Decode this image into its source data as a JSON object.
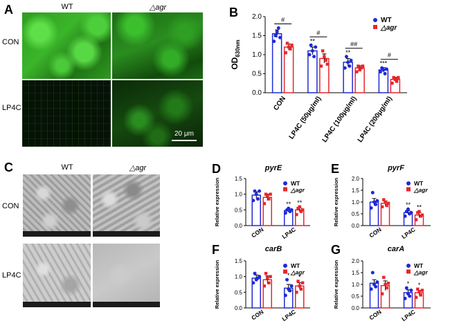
{
  "panels": {
    "A": {
      "letter": "A",
      "col_labels": [
        "WT",
        "△agr"
      ],
      "row_labels": [
        "CON",
        "LP4C"
      ],
      "scale_bar": "20 μm"
    },
    "C": {
      "letter": "C",
      "col_labels": [
        "WT",
        "△agr"
      ],
      "row_labels": [
        "CON",
        "LP4C"
      ]
    }
  },
  "colors": {
    "wt": "#1f2ad6",
    "agr": "#e8262a",
    "fluor": "#3fbf2a",
    "sem": "#b5b5b5"
  },
  "chart_data": [
    {
      "panel": "B",
      "type": "bar",
      "ylabel": "OD630nm",
      "ylim": [
        0,
        2.0
      ],
      "yticks": [
        "0.0",
        "0.5",
        "1.0",
        "1.5",
        "2.0"
      ],
      "categories": [
        "CON",
        "LP4C (50μg/ml)",
        "LP4C (100μg/ml)",
        "LP4C (200μg/ml)"
      ],
      "series": [
        {
          "name": "WT",
          "values": [
            1.55,
            1.1,
            0.8,
            0.6
          ],
          "errors": [
            0.1,
            0.1,
            0.1,
            0.06
          ],
          "points": [
            [
              1.35,
              1.5,
              1.6,
              1.7,
              1.45
            ],
            [
              1.0,
              1.25,
              1.1,
              0.95,
              1.2
            ],
            [
              0.65,
              0.95,
              0.8,
              0.7,
              0.85
            ],
            [
              0.55,
              0.65,
              0.6,
              0.5,
              0.62
            ]
          ]
        },
        {
          "name": "△agr",
          "values": [
            1.2,
            0.9,
            0.65,
            0.35
          ],
          "errors": [
            0.08,
            0.12,
            0.06,
            0.05
          ],
          "points": [
            [
              1.05,
              1.3,
              1.2,
              1.15,
              1.25
            ],
            [
              0.7,
              1.1,
              0.95,
              0.85,
              0.75
            ],
            [
              0.55,
              0.7,
              0.6,
              0.65,
              0.7
            ],
            [
              0.25,
              0.4,
              0.35,
              0.3,
              0.4
            ]
          ]
        }
      ],
      "sig_markers": [
        {
          "index": 0,
          "between": "#",
          "wt": "",
          "agr": ""
        },
        {
          "index": 1,
          "between": "#",
          "wt": "**",
          "agr": ""
        },
        {
          "index": 2,
          "between": "##",
          "wt": "**",
          "agr": ""
        },
        {
          "index": 3,
          "between": "#",
          "wt": "***",
          "agr": ""
        }
      ],
      "legend": "top-right"
    },
    {
      "panel": "D",
      "title": "pyrE",
      "type": "bar",
      "ylabel": "Relative expression",
      "ylim": [
        0,
        1.5
      ],
      "yticks": [
        "0.0",
        "0.5",
        "1.0",
        "1.5"
      ],
      "categories": [
        "CON",
        "LP4C"
      ],
      "series": [
        {
          "name": "WT",
          "values": [
            0.97,
            0.48
          ],
          "errors": [
            0.1,
            0.05
          ],
          "points": [
            [
              0.8,
              1.1,
              1.0,
              0.85,
              1.1
            ],
            [
              0.4,
              0.5,
              0.55,
              0.45,
              0.5
            ]
          ]
        },
        {
          "name": "△agr",
          "values": [
            0.9,
            0.5
          ],
          "errors": [
            0.1,
            0.06
          ],
          "points": [
            [
              0.7,
              1.0,
              0.95,
              0.85,
              1.0
            ],
            [
              0.35,
              0.55,
              0.6,
              0.45,
              0.5
            ]
          ]
        }
      ],
      "sig_markers": [
        {
          "index": 1,
          "wt": "**",
          "agr": "**"
        }
      ],
      "legend": "top-right"
    },
    {
      "panel": "E",
      "title": "pyrF",
      "type": "bar",
      "ylabel": "Relative expression",
      "ylim": [
        0,
        2.0
      ],
      "yticks": [
        "0.0",
        "0.5",
        "1.0",
        "1.5",
        "2.0"
      ],
      "categories": [
        "CON",
        "LP4C"
      ],
      "series": [
        {
          "name": "WT",
          "values": [
            1.0,
            0.55
          ],
          "errors": [
            0.15,
            0.08
          ],
          "points": [
            [
              0.75,
              1.4,
              1.0,
              0.9,
              1.05
            ],
            [
              0.4,
              0.6,
              0.7,
              0.5,
              0.55
            ]
          ]
        },
        {
          "name": "△agr",
          "values": [
            0.95,
            0.45
          ],
          "errors": [
            0.1,
            0.1
          ],
          "points": [
            [
              0.8,
              1.1,
              1.0,
              0.85,
              0.95
            ],
            [
              0.25,
              0.55,
              0.6,
              0.4,
              0.45
            ]
          ]
        }
      ],
      "sig_markers": [
        {
          "index": 1,
          "wt": "**",
          "agr": "**"
        }
      ],
      "legend": "top-right"
    },
    {
      "panel": "F",
      "title": "carB",
      "type": "bar",
      "ylabel": "Relative expression",
      "ylim": [
        0,
        1.5
      ],
      "yticks": [
        "0.0",
        "0.5",
        "1.0",
        "1.5"
      ],
      "categories": [
        "CON",
        "LP4C"
      ],
      "series": [
        {
          "name": "WT",
          "values": [
            0.95,
            0.63
          ],
          "errors": [
            0.1,
            0.12
          ],
          "points": [
            [
              0.8,
              1.1,
              0.9,
              0.95,
              1.0
            ],
            [
              0.4,
              0.9,
              0.6,
              0.55,
              0.7
            ]
          ]
        },
        {
          "name": "△agr",
          "values": [
            0.9,
            0.7
          ],
          "errors": [
            0.12,
            0.1
          ],
          "points": [
            [
              0.7,
              1.1,
              0.95,
              0.8,
              1.0
            ],
            [
              0.5,
              0.85,
              0.7,
              0.6,
              0.8
            ]
          ]
        }
      ],
      "sig_markers": [
        {
          "index": 1,
          "wt": "*",
          "agr": "*"
        }
      ],
      "legend": "top-right"
    },
    {
      "panel": "G",
      "title": "carA",
      "type": "bar",
      "ylabel": "Relative expression",
      "ylim": [
        0,
        2.0
      ],
      "yticks": [
        "0.0",
        "0.5",
        "1.0",
        "1.5",
        "2.0"
      ],
      "categories": [
        "CON",
        "LP4C"
      ],
      "series": [
        {
          "name": "WT",
          "values": [
            1.05,
            0.65
          ],
          "errors": [
            0.15,
            0.12
          ],
          "points": [
            [
              0.8,
              1.5,
              1.0,
              0.9,
              1.1
            ],
            [
              0.4,
              0.85,
              0.6,
              0.5,
              0.75
            ]
          ]
        },
        {
          "name": "△agr",
          "values": [
            0.95,
            0.65
          ],
          "errors": [
            0.2,
            0.1
          ],
          "points": [
            [
              0.6,
              1.3,
              1.0,
              0.85,
              1.05
            ],
            [
              0.45,
              0.8,
              0.7,
              0.55,
              0.75
            ]
          ]
        }
      ],
      "sig_markers": [
        {
          "index": 1,
          "wt": "*",
          "agr": "*"
        }
      ],
      "legend": "top-right"
    }
  ]
}
